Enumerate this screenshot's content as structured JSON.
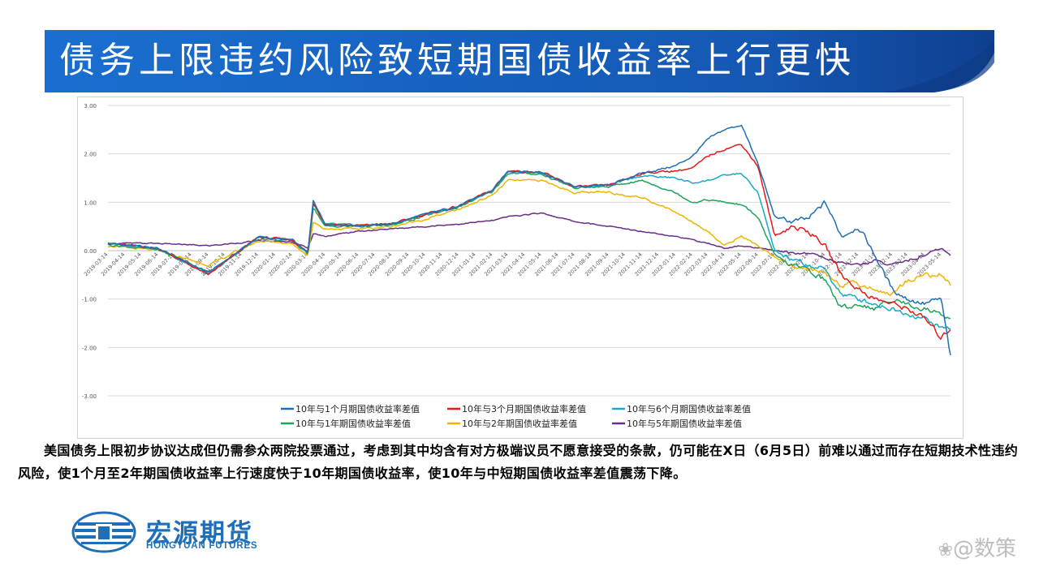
{
  "slide": {
    "title": "债务上限违约风险致短期国债收益率上行更快",
    "body": "美国债务上限初步协议达成但仍需参众两院投票通过，考虑到其中均含有对方极端议员不愿意接受的条款，仍可能在X日（6月5日）前难以通过而存在短期技术性违约风险，使1个月至2年期国债收益率上行速度快于10年期国债收益率，使10年与中短期国债收益率差值震荡下降。",
    "logo_cn": "宏源期货",
    "logo_en": "HONGYUAN FUTURES",
    "watermark": "@数策",
    "colors": {
      "banner": "#1565c0",
      "accent": "#1f6fb8"
    }
  },
  "chart_data": {
    "type": "line",
    "title": "",
    "xlabel": "",
    "ylabel": "",
    "ylim": [
      -3.0,
      3.0
    ],
    "yticks": [
      "3.00",
      "2.00",
      "1.00",
      "0.00",
      "-1.00",
      "-2.00",
      "-3.00"
    ],
    "grid": true,
    "legend": "bottom",
    "x_ticks": [
      "2019-03-14",
      "2019-04-14",
      "2019-05-14",
      "2019-06-14",
      "2019-07-14",
      "2019-08-14",
      "2019-09-14",
      "2019-10-14",
      "2019-11-14",
      "2019-12-14",
      "2020-01-14",
      "2020-02-14",
      "2020-03-14",
      "2020-04-14",
      "2020-05-14",
      "2020-06-14",
      "2020-07-14",
      "2020-08-14",
      "2020-09-14",
      "2020-10-14",
      "2020-11-14",
      "2020-12-14",
      "2021-01-14",
      "2021-02-14",
      "2021-03-14",
      "2021-04-14",
      "2021-05-14",
      "2021-06-14",
      "2021-07-14",
      "2021-08-14",
      "2021-09-14",
      "2021-10-14",
      "2021-11-14",
      "2021-12-14",
      "2022-01-14",
      "2022-02-14",
      "2022-03-14",
      "2022-04-14",
      "2022-05-14",
      "2022-06-14",
      "2022-07-14",
      "2022-08-14",
      "2022-09-14",
      "2022-10-14",
      "2022-11-14",
      "2022-12-14",
      "2023-01-14",
      "2023-02-14",
      "2023-03-14",
      "2023-04-14",
      "2023-05-14"
    ],
    "x": [
      "2019-03-14",
      "2019-06-14",
      "2019-09-14",
      "2019-12-14",
      "2020-02-14",
      "2020-03-14",
      "2020-03-24",
      "2020-04-14",
      "2020-06-14",
      "2020-08-14",
      "2020-10-14",
      "2020-12-14",
      "2021-02-14",
      "2021-03-14",
      "2021-05-14",
      "2021-07-14",
      "2021-09-14",
      "2021-11-14",
      "2022-01-14",
      "2022-02-14",
      "2022-03-14",
      "2022-04-14",
      "2022-05-14",
      "2022-06-14",
      "2022-07-14",
      "2022-08-14",
      "2022-09-14",
      "2022-10-14",
      "2022-11-14",
      "2022-12-14",
      "2023-01-14",
      "2023-02-14",
      "2023-03-14",
      "2023-04-14",
      "2023-05-14",
      "2023-05-31"
    ],
    "series": [
      {
        "name": "10年与1个月期国债收益率差值",
        "color": "#1f6fb4",
        "values": [
          0.15,
          0.05,
          -0.45,
          0.28,
          0.22,
          -0.05,
          1.05,
          0.55,
          0.52,
          0.55,
          0.75,
          0.92,
          1.25,
          1.65,
          1.62,
          1.32,
          1.35,
          1.6,
          1.75,
          1.95,
          2.3,
          2.5,
          2.6,
          1.8,
          0.7,
          0.6,
          0.65,
          1.0,
          0.3,
          0.5,
          -0.1,
          -0.8,
          -1.0,
          -1.1,
          -1.0,
          -2.2
        ]
      },
      {
        "name": "10年与3个月期国债收益率差值",
        "color": "#e31a1c",
        "values": [
          0.15,
          0.05,
          -0.5,
          0.28,
          0.22,
          -0.05,
          1.0,
          0.55,
          0.52,
          0.55,
          0.75,
          0.92,
          1.25,
          1.65,
          1.62,
          1.32,
          1.35,
          1.6,
          1.65,
          1.7,
          1.95,
          2.1,
          2.2,
          1.75,
          0.3,
          0.5,
          0.4,
          0.1,
          -0.5,
          -0.8,
          -1.0,
          -1.1,
          -1.2,
          -1.4,
          -1.8,
          -1.6
        ]
      },
      {
        "name": "10年与6个月期国债收益率差值",
        "color": "#17a9c9",
        "values": [
          0.15,
          0.05,
          -0.5,
          0.28,
          0.22,
          -0.05,
          0.95,
          0.55,
          0.52,
          0.55,
          0.75,
          0.92,
          1.25,
          1.65,
          1.62,
          1.32,
          1.35,
          1.55,
          1.5,
          1.4,
          1.45,
          1.55,
          1.6,
          1.2,
          0.0,
          -0.2,
          -0.3,
          -0.4,
          -0.9,
          -1.0,
          -1.1,
          -1.2,
          -1.3,
          -1.4,
          -1.6,
          -1.6
        ]
      },
      {
        "name": "10年与1年期国债收益率差值",
        "color": "#1fa35c",
        "values": [
          0.12,
          0.02,
          -0.45,
          0.25,
          0.2,
          -0.08,
          0.9,
          0.5,
          0.5,
          0.52,
          0.72,
          0.9,
          1.22,
          1.6,
          1.58,
          1.3,
          1.32,
          1.45,
          1.2,
          1.0,
          1.05,
          1.0,
          0.95,
          0.7,
          -0.1,
          -0.3,
          -0.4,
          -0.6,
          -1.2,
          -1.1,
          -1.2,
          -1.0,
          -1.1,
          -1.2,
          -1.3,
          -1.4
        ]
      },
      {
        "name": "10年与2年期国债收益率差值",
        "color": "#f0b400",
        "values": [
          0.1,
          0.0,
          -0.3,
          0.2,
          0.15,
          -0.1,
          0.6,
          0.45,
          0.45,
          0.5,
          0.65,
          0.85,
          1.15,
          1.45,
          1.45,
          1.2,
          1.2,
          1.1,
          0.8,
          0.6,
          0.4,
          0.1,
          0.3,
          0.1,
          -0.15,
          -0.3,
          -0.4,
          -0.45,
          -0.7,
          -0.7,
          -0.8,
          -0.9,
          -0.6,
          -0.5,
          -0.5,
          -0.7
        ]
      },
      {
        "name": "10年与5年期国债收益率差值",
        "color": "#6a2c8c",
        "values": [
          0.15,
          0.15,
          0.1,
          0.2,
          0.18,
          0.05,
          0.35,
          0.3,
          0.4,
          0.45,
          0.5,
          0.55,
          0.62,
          0.7,
          0.78,
          0.6,
          0.5,
          0.4,
          0.3,
          0.22,
          0.15,
          0.05,
          0.1,
          0.05,
          0.0,
          -0.05,
          -0.05,
          -0.15,
          -0.25,
          -0.3,
          -0.2,
          -0.3,
          -0.2,
          -0.1,
          0.05,
          -0.1
        ]
      }
    ]
  }
}
